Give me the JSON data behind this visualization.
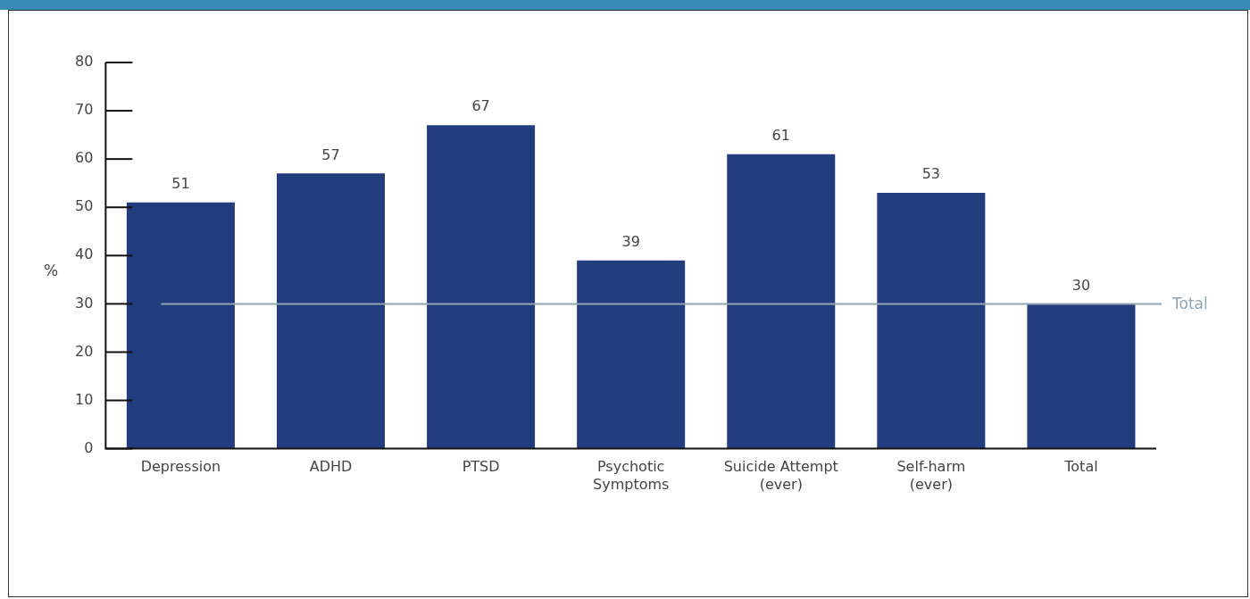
{
  "chart_data": {
    "type": "bar",
    "ylabel": "%",
    "categories": [
      "Depression",
      "ADHD",
      "PTSD",
      "Psychotic\nSymptoms",
      "Suicide Attempt\n(ever)",
      "Self-harm\n(ever)",
      "Total"
    ],
    "values": [
      51,
      57,
      67,
      39,
      61,
      53,
      30
    ],
    "color": "#233c7e",
    "ylim": [
      0,
      80
    ],
    "yticks": [
      0,
      10,
      20,
      30,
      40,
      50,
      60,
      70,
      80
    ],
    "grid": false,
    "data_labels": true,
    "ref_lines": [
      {
        "axis": "y",
        "value": 30,
        "label": "Total",
        "color": "#8fa3b0"
      }
    ]
  }
}
